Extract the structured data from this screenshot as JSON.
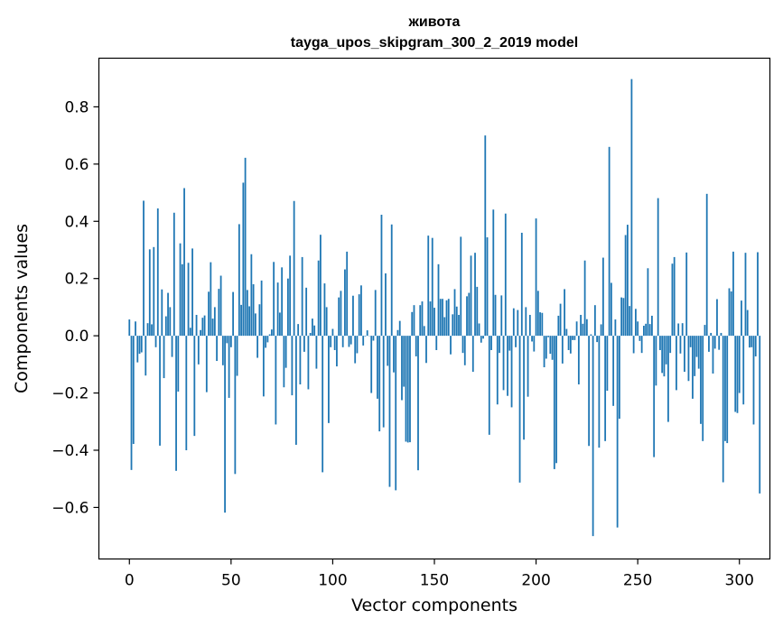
{
  "chart_data": {
    "type": "bar",
    "title_lines": [
      "живота",
      "tayga_upos_skipgram_300_2_2019 model"
    ],
    "xlabel": "Vector components",
    "ylabel": "Components values",
    "xlim": [
      -15,
      315
    ],
    "ylim": [
      -0.78,
      0.97
    ],
    "xticks": [
      0,
      50,
      100,
      150,
      200,
      250,
      300
    ],
    "yticks": [
      -0.6,
      -0.4,
      -0.2,
      0.0,
      0.2,
      0.4,
      0.6,
      0.8
    ],
    "ytick_labels": [
      "−0.6",
      "−0.4",
      "−0.2",
      "0.0",
      "0.2",
      "0.4",
      "0.6",
      "0.8"
    ],
    "bar_color": "#1f77b4",
    "values": [
      0.057,
      -0.469,
      -0.378,
      0.05,
      -0.093,
      -0.063,
      -0.058,
      0.472,
      -0.139,
      0.044,
      0.302,
      0.04,
      0.31,
      -0.04,
      0.445,
      -0.384,
      0.162,
      -0.148,
      0.068,
      0.15,
      0.1,
      -0.074,
      0.43,
      -0.472,
      -0.195,
      0.323,
      0.25,
      0.516,
      -0.4,
      0.255,
      0.028,
      0.305,
      -0.35,
      0.073,
      -0.1,
      0.02,
      0.063,
      0.071,
      -0.197,
      0.154,
      0.257,
      0.06,
      0.1,
      -0.088,
      0.164,
      0.21,
      -0.103,
      -0.618,
      -0.026,
      -0.217,
      -0.04,
      0.153,
      -0.483,
      -0.14,
      0.39,
      0.108,
      0.535,
      0.622,
      0.16,
      0.103,
      0.285,
      0.18,
      0.078,
      -0.077,
      0.11,
      0.193,
      -0.212,
      -0.042,
      -0.023,
      0.005,
      0.022,
      0.258,
      -0.31,
      0.186,
      0.081,
      0.239,
      -0.18,
      -0.112,
      0.2,
      0.28,
      -0.208,
      0.471,
      -0.381,
      0.041,
      -0.17,
      0.275,
      -0.056,
      0.168,
      -0.187,
      0.01,
      0.06,
      0.036,
      -0.115,
      0.263,
      0.353,
      -0.477,
      0.183,
      0.1,
      -0.305,
      -0.04,
      0.024,
      -0.05,
      -0.107,
      0.134,
      0.157,
      -0.04,
      0.232,
      0.294,
      -0.039,
      -0.03,
      0.14,
      -0.096,
      -0.061,
      0.145,
      0.176,
      -0.034,
      -0.002,
      0.019,
      0.0,
      -0.2,
      -0.017,
      0.16,
      -0.22,
      -0.334,
      0.423,
      -0.32,
      0.218,
      -0.105,
      -0.528,
      0.389,
      -0.128,
      -0.54,
      0.02,
      0.052,
      -0.225,
      -0.178,
      -0.37,
      -0.373,
      -0.372,
      0.083,
      0.107,
      -0.072,
      -0.47,
      0.107,
      0.12,
      0.034,
      -0.095,
      0.35,
      0.12,
      0.342,
      0.098,
      -0.05,
      0.25,
      0.129,
      0.129,
      0.065,
      0.124,
      0.129,
      -0.065,
      0.075,
      0.163,
      0.102,
      0.073,
      0.346,
      -0.06,
      -0.103,
      0.138,
      0.15,
      0.28,
      -0.126,
      0.29,
      0.171,
      0.043,
      -0.024,
      -0.01,
      0.7,
      0.344,
      -0.346,
      -0.05,
      0.441,
      0.143,
      -0.24,
      -0.06,
      0.141,
      -0.19,
      0.427,
      -0.21,
      -0.052,
      -0.25,
      0.096,
      -0.04,
      0.09,
      -0.513,
      0.36,
      -0.363,
      0.1,
      -0.213,
      0.073,
      -0.02,
      -0.055,
      0.41,
      0.157,
      0.082,
      0.08,
      -0.11,
      -0.08,
      -0.005,
      -0.063,
      -0.084,
      -0.466,
      -0.445,
      0.07,
      0.112,
      -0.097,
      0.163,
      0.024,
      -0.05,
      -0.062,
      -0.015,
      -0.015,
      0.05,
      -0.17,
      0.073,
      0.042,
      0.263,
      0.058,
      -0.385,
      0.005,
      -0.7,
      0.107,
      -0.022,
      -0.391,
      0.04,
      0.273,
      -0.368,
      -0.192,
      0.66,
      0.185,
      -0.245,
      0.057,
      -0.67,
      -0.29,
      0.134,
      0.132,
      0.352,
      0.388,
      0.104,
      0.897,
      -0.061,
      0.094,
      0.05,
      -0.018,
      -0.06,
      0.035,
      0.042,
      0.236,
      0.041,
      0.07,
      -0.424,
      -0.174,
      0.481,
      -0.05,
      -0.13,
      -0.142,
      -0.1,
      -0.301,
      -0.06,
      0.252,
      0.275,
      -0.19,
      0.043,
      -0.062,
      0.044,
      -0.126,
      0.291,
      -0.158,
      -0.04,
      -0.22,
      -0.141,
      -0.074,
      -0.115,
      -0.308,
      -0.368,
      0.038,
      0.496,
      -0.056,
      0.01,
      -0.132,
      -0.045,
      0.128,
      -0.049,
      0.01,
      -0.512,
      -0.368,
      -0.375,
      0.166,
      0.155,
      0.294,
      -0.266,
      -0.27,
      -0.2,
      0.123,
      -0.24,
      0.29,
      0.09,
      -0.041,
      -0.04,
      -0.31,
      -0.072,
      0.292,
      -0.551
    ]
  }
}
